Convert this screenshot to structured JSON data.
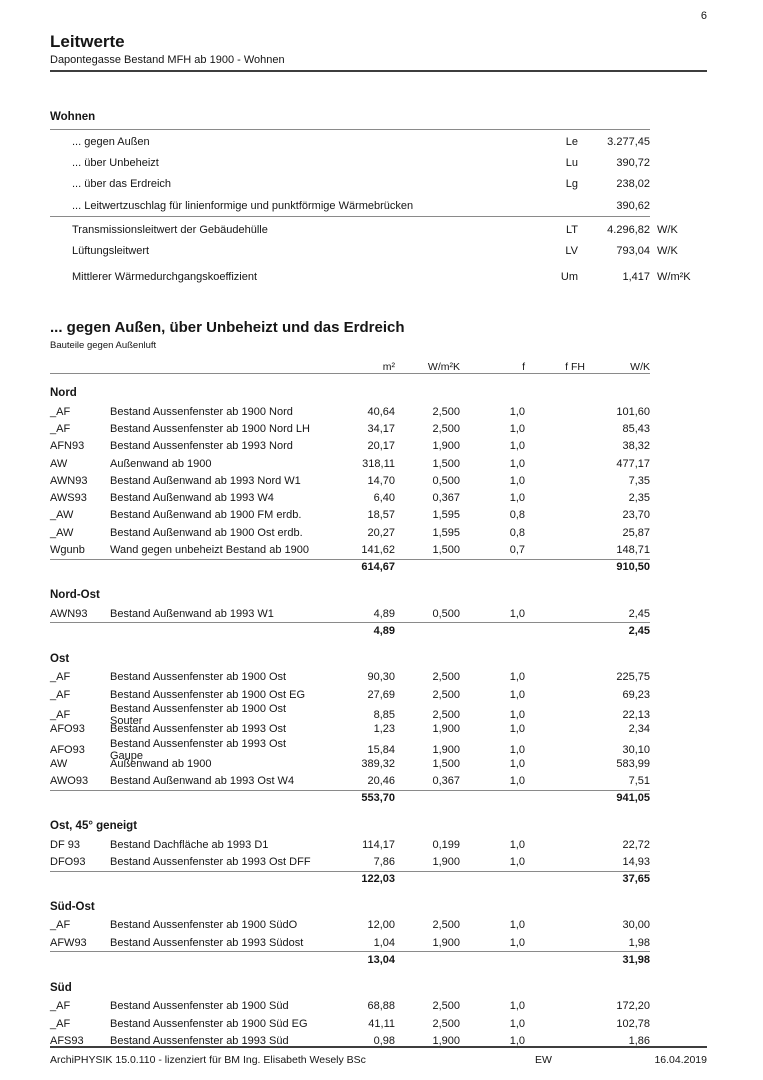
{
  "page": {
    "number": "6",
    "title": "Leitwerte",
    "subtitle": "Dapontegasse Bestand MFH ab 1900 - Wohnen"
  },
  "summary": {
    "heading": "Wohnen",
    "rows": [
      {
        "label": "... gegen Außen",
        "symbol": "Le",
        "value": "3.277,45",
        "unit": ""
      },
      {
        "label": "... über Unbeheizt",
        "symbol": "Lu",
        "value": "390,72",
        "unit": ""
      },
      {
        "label": "... über das Erdreich",
        "symbol": "Lg",
        "value": "238,02",
        "unit": ""
      },
      {
        "label": "... Leitwertzuschlag für linienformige und punktförmige Wärmebrücken",
        "symbol": "",
        "value": "390,62",
        "unit": ""
      }
    ],
    "results": [
      {
        "label": "Transmissionsleitwert der Gebäudehülle",
        "symbol": "LT",
        "value": "4.296,82",
        "unit": "W/K"
      },
      {
        "label": "Lüftungsleitwert",
        "symbol": "LV",
        "value": "793,04",
        "unit": "W/K"
      }
    ],
    "mean": {
      "label": "Mittlerer Wärmedurchgangskoeffizient",
      "symbol": "Um",
      "value": "1,417",
      "unit": "W/m²K"
    }
  },
  "detail": {
    "heading": "... gegen Außen, über Unbeheizt und das Erdreich",
    "subheading": "Bauteile gegen Außenluft",
    "columns": [
      "m²",
      "W/m²K",
      "f",
      "f FH",
      "W/K"
    ],
    "groups": [
      {
        "name": "Nord",
        "rows": [
          {
            "code": "_AF",
            "desc": "Bestand Aussenfenster ab 1900 Nord",
            "m2": "40,64",
            "u": "2,500",
            "f": "1,0",
            "ffh": "",
            "wk": "101,60"
          },
          {
            "code": "_AF",
            "desc": "Bestand Aussenfenster ab 1900 Nord LH",
            "m2": "34,17",
            "u": "2,500",
            "f": "1,0",
            "ffh": "",
            "wk": "85,43"
          },
          {
            "code": "AFN93",
            "desc": "Bestand Aussenfenster ab 1993 Nord",
            "m2": "20,17",
            "u": "1,900",
            "f": "1,0",
            "ffh": "",
            "wk": "38,32"
          },
          {
            "code": "AW",
            "desc": "Außenwand ab 1900",
            "m2": "318,11",
            "u": "1,500",
            "f": "1,0",
            "ffh": "",
            "wk": "477,17"
          },
          {
            "code": "AWN93",
            "desc": "Bestand Außenwand ab 1993 Nord W1",
            "m2": "14,70",
            "u": "0,500",
            "f": "1,0",
            "ffh": "",
            "wk": "7,35"
          },
          {
            "code": "AWS93",
            "desc": "Bestand Außenwand ab 1993 W4",
            "m2": "6,40",
            "u": "0,367",
            "f": "1,0",
            "ffh": "",
            "wk": "2,35"
          },
          {
            "code": "_AW",
            "desc": "Bestand Außenwand ab 1900 FM erdb.",
            "m2": "18,57",
            "u": "1,595",
            "f": "0,8",
            "ffh": "",
            "wk": "23,70"
          },
          {
            "code": "_AW",
            "desc": "Bestand Außenwand ab 1900 Ost erdb.",
            "m2": "20,27",
            "u": "1,595",
            "f": "0,8",
            "ffh": "",
            "wk": "25,87"
          },
          {
            "code": "Wgunb",
            "desc": "Wand gegen unbeheizt Bestand ab 1900",
            "m2": "141,62",
            "u": "1,500",
            "f": "0,7",
            "ffh": "",
            "wk": "148,71"
          }
        ],
        "total": {
          "m2": "614,67",
          "wk": "910,50"
        }
      },
      {
        "name": "Nord-Ost",
        "rows": [
          {
            "code": "AWN93",
            "desc": "Bestand Außenwand ab 1993 W1",
            "m2": "4,89",
            "u": "0,500",
            "f": "1,0",
            "ffh": "",
            "wk": "2,45"
          }
        ],
        "total": {
          "m2": "4,89",
          "wk": "2,45"
        }
      },
      {
        "name": "Ost",
        "rows": [
          {
            "code": "_AF",
            "desc": "Bestand Aussenfenster ab 1900 Ost",
            "m2": "90,30",
            "u": "2,500",
            "f": "1,0",
            "ffh": "",
            "wk": "225,75"
          },
          {
            "code": "_AF",
            "desc": "Bestand Aussenfenster ab 1900 Ost EG",
            "m2": "27,69",
            "u": "2,500",
            "f": "1,0",
            "ffh": "",
            "wk": "69,23"
          },
          {
            "code": "_AF",
            "desc": "Bestand Aussenfenster ab 1900 Ost Souter",
            "m2": "8,85",
            "u": "2,500",
            "f": "1,0",
            "ffh": "",
            "wk": "22,13"
          },
          {
            "code": "AFO93",
            "desc": "Bestand Aussenfenster ab 1993 Ost",
            "m2": "1,23",
            "u": "1,900",
            "f": "1,0",
            "ffh": "",
            "wk": "2,34"
          },
          {
            "code": "AFO93",
            "desc": "Bestand Aussenfenster ab 1993 Ost Gaupe",
            "m2": "15,84",
            "u": "1,900",
            "f": "1,0",
            "ffh": "",
            "wk": "30,10"
          },
          {
            "code": "AW",
            "desc": "Außenwand ab 1900",
            "m2": "389,32",
            "u": "1,500",
            "f": "1,0",
            "ffh": "",
            "wk": "583,99"
          },
          {
            "code": "AWO93",
            "desc": "Bestand Außenwand ab 1993 Ost W4",
            "m2": "20,46",
            "u": "0,367",
            "f": "1,0",
            "ffh": "",
            "wk": "7,51"
          }
        ],
        "total": {
          "m2": "553,70",
          "wk": "941,05"
        }
      },
      {
        "name": "Ost, 45° geneigt",
        "rows": [
          {
            "code": "DF 93",
            "desc": "Bestand Dachfläche ab 1993 D1",
            "m2": "114,17",
            "u": "0,199",
            "f": "1,0",
            "ffh": "",
            "wk": "22,72"
          },
          {
            "code": "DFO93",
            "desc": "Bestand Aussenfenster ab 1993 Ost DFF",
            "m2": "7,86",
            "u": "1,900",
            "f": "1,0",
            "ffh": "",
            "wk": "14,93"
          }
        ],
        "total": {
          "m2": "122,03",
          "wk": "37,65"
        }
      },
      {
        "name": "Süd-Ost",
        "rows": [
          {
            "code": "_AF",
            "desc": "Bestand Aussenfenster ab 1900 SüdO",
            "m2": "12,00",
            "u": "2,500",
            "f": "1,0",
            "ffh": "",
            "wk": "30,00"
          },
          {
            "code": "AFW93",
            "desc": "Bestand Aussenfenster ab 1993 Südost",
            "m2": "1,04",
            "u": "1,900",
            "f": "1,0",
            "ffh": "",
            "wk": "1,98"
          }
        ],
        "total": {
          "m2": "13,04",
          "wk": "31,98"
        }
      },
      {
        "name": "Süd",
        "rows": [
          {
            "code": "_AF",
            "desc": "Bestand Aussenfenster ab 1900 Süd",
            "m2": "68,88",
            "u": "2,500",
            "f": "1,0",
            "ffh": "",
            "wk": "172,20"
          },
          {
            "code": "_AF",
            "desc": "Bestand Aussenfenster ab 1900 Süd EG",
            "m2": "41,11",
            "u": "2,500",
            "f": "1,0",
            "ffh": "",
            "wk": "102,78"
          },
          {
            "code": "AFS93",
            "desc": "Bestand Aussenfenster ab 1993 Süd",
            "m2": "0,98",
            "u": "1,900",
            "f": "1,0",
            "ffh": "",
            "wk": "1,86"
          }
        ],
        "total": null
      }
    ]
  },
  "footer": {
    "left": "ArchiPHYSIK 15.0.110 - lizenziert für BM Ing. Elisabeth Wesely BSc",
    "initials": "EW",
    "date": "16.04.2019"
  }
}
